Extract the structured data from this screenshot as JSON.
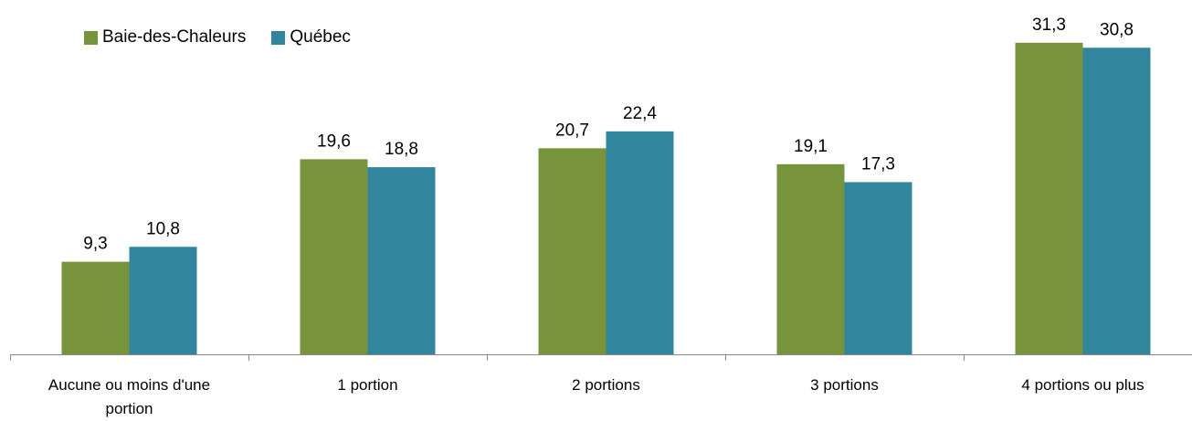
{
  "chart_data": {
    "type": "bar",
    "categories": [
      "Aucune ou moins d'une portion",
      "1 portion",
      "2 portions",
      "3 portions",
      "4 portions ou plus"
    ],
    "category_lines": [
      [
        "Aucune ou moins d'une",
        "portion"
      ],
      [
        "1 portion"
      ],
      [
        "2 portions"
      ],
      [
        "3 portions"
      ],
      [
        "4 portions ou plus"
      ]
    ],
    "series": [
      {
        "name": "Baie-des-Chaleurs",
        "values": [
          9.3,
          19.6,
          20.7,
          19.1,
          31.3
        ],
        "labels": [
          "9,3",
          "19,6",
          "20,7",
          "19,1",
          "31,3"
        ],
        "color": "#77933C"
      },
      {
        "name": "Québec",
        "values": [
          10.8,
          18.8,
          22.4,
          17.3,
          30.8
        ],
        "labels": [
          "10,8",
          "18,8",
          "22,4",
          "17,3",
          "30,8"
        ],
        "color": "#31859C"
      }
    ],
    "ylim": [
      0,
      35
    ],
    "grid": false,
    "legend_position": "top-left"
  }
}
